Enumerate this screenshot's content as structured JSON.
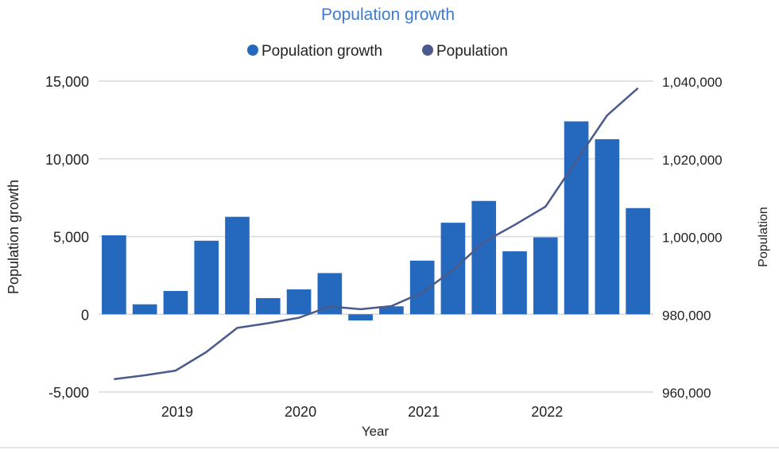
{
  "chart_data": {
    "type": "bar+line",
    "title": "Population growth",
    "xlabel": "Year",
    "ylabel_left": "Population growth",
    "ylabel_right": "Population",
    "legend_position": "top",
    "grid": true,
    "x_tick_labels": [
      {
        "label": "2019",
        "category_index": 2
      },
      {
        "label": "2020",
        "category_index": 6
      },
      {
        "label": "2021",
        "category_index": 10
      },
      {
        "label": "2022",
        "category_index": 14
      }
    ],
    "category_count": 18,
    "ylim_left": [
      -5000,
      15000
    ],
    "ylim_right": [
      960000,
      1040000
    ],
    "left_ticks": [
      "-5,000",
      "0",
      "5,000",
      "10,000",
      "15,000"
    ],
    "left_tick_values": [
      -5000,
      0,
      5000,
      10000,
      15000
    ],
    "right_ticks": [
      "960,000",
      "980,000",
      "1,000,000",
      "1,020,000",
      "1,040,000"
    ],
    "right_tick_values": [
      960000,
      980000,
      1000000,
      1020000,
      1040000
    ],
    "series": [
      {
        "name": "Population growth",
        "type": "bar",
        "axis": "left",
        "color": "#2469bd",
        "values": [
          5080,
          640,
          1500,
          4730,
          6270,
          1040,
          1600,
          2650,
          -400,
          510,
          3450,
          5890,
          7290,
          4050,
          4950,
          12410,
          11260,
          6830
        ]
      },
      {
        "name": "Population",
        "type": "line",
        "axis": "right",
        "color": "#4b5a8c",
        "values": [
          963300,
          964300,
          965500,
          970300,
          976500,
          977700,
          979100,
          982000,
          981300,
          982100,
          985600,
          991400,
          998600,
          1003000,
          1007700,
          1019500,
          1031200,
          1038200
        ]
      }
    ]
  },
  "colors": {
    "title": "#3d7bd0",
    "grid": "#d9d9d9",
    "text": "#222222"
  }
}
